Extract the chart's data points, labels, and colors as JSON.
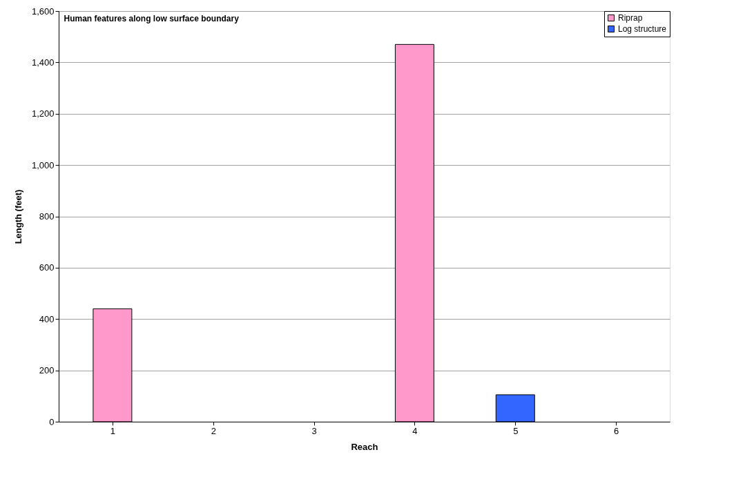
{
  "chart_data": {
    "type": "bar",
    "title": "Human features along low surface boundary",
    "xlabel": "Reach",
    "ylabel": "Length (feet)",
    "categories": [
      "1",
      "2",
      "3",
      "4",
      "5",
      "6"
    ],
    "series": [
      {
        "name": "Riprap",
        "color": "#ff99cc",
        "values": [
          440,
          null,
          null,
          1470,
          null,
          null
        ]
      },
      {
        "name": "Log structure",
        "color": "#3366ff",
        "values": [
          null,
          null,
          null,
          null,
          105,
          null
        ]
      }
    ],
    "ylim": [
      0,
      1600
    ],
    "yticks": [
      0,
      200,
      400,
      600,
      800,
      {
        "value": 1000,
        "label": "1,000"
      },
      {
        "value": 1200,
        "label": "1,200"
      },
      {
        "value": 1400,
        "label": "1,400"
      },
      {
        "value": 1600,
        "label": "1,600"
      }
    ],
    "grid": "y",
    "legend": "top right"
  }
}
